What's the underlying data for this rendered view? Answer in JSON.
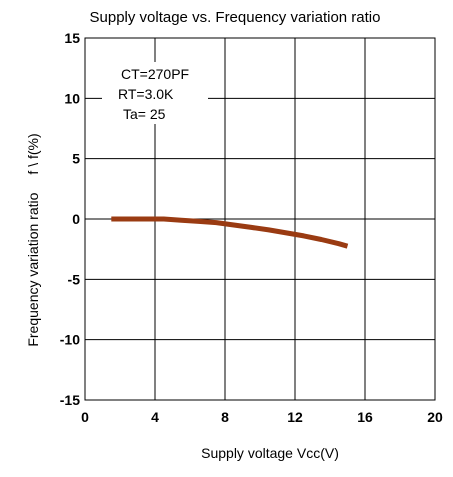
{
  "chart_data": {
    "type": "line",
    "title": "Supply voltage vs. Frequency variation ratio",
    "xlabel": "Supply voltage Vcc(V)",
    "ylabel": "Frequency variation ratio",
    "ylabel_suffix": "f \\ f(%)",
    "xlim": [
      0,
      20
    ],
    "ylim": [
      -15,
      15
    ],
    "xticks": [
      "0",
      "4",
      "8",
      "12",
      "16",
      "20"
    ],
    "xtick_values": [
      0,
      4,
      8,
      12,
      16,
      20
    ],
    "yticks": [
      "15",
      "10",
      "5",
      "0",
      "-5",
      "-10",
      "-15"
    ],
    "ytick_values": [
      15,
      10,
      5,
      0,
      -5,
      -10,
      -15
    ],
    "grid": true,
    "annotations": [
      "CT=270PF",
      "RT=3.0K",
      "Ta=  25"
    ],
    "series_color": "#9a3b12",
    "series": [
      {
        "x": [
          1.5,
          2.5,
          3.5,
          4.5,
          5.5,
          6.5,
          7.5,
          8.5,
          9.5,
          10.5,
          11.5,
          12.5,
          13.5,
          14.5,
          15.0
        ],
        "y": [
          0.0,
          0.0,
          0.0,
          0.0,
          -0.1,
          -0.2,
          -0.3,
          -0.5,
          -0.7,
          -0.9,
          -1.15,
          -1.4,
          -1.7,
          -2.05,
          -2.25
        ]
      }
    ]
  }
}
